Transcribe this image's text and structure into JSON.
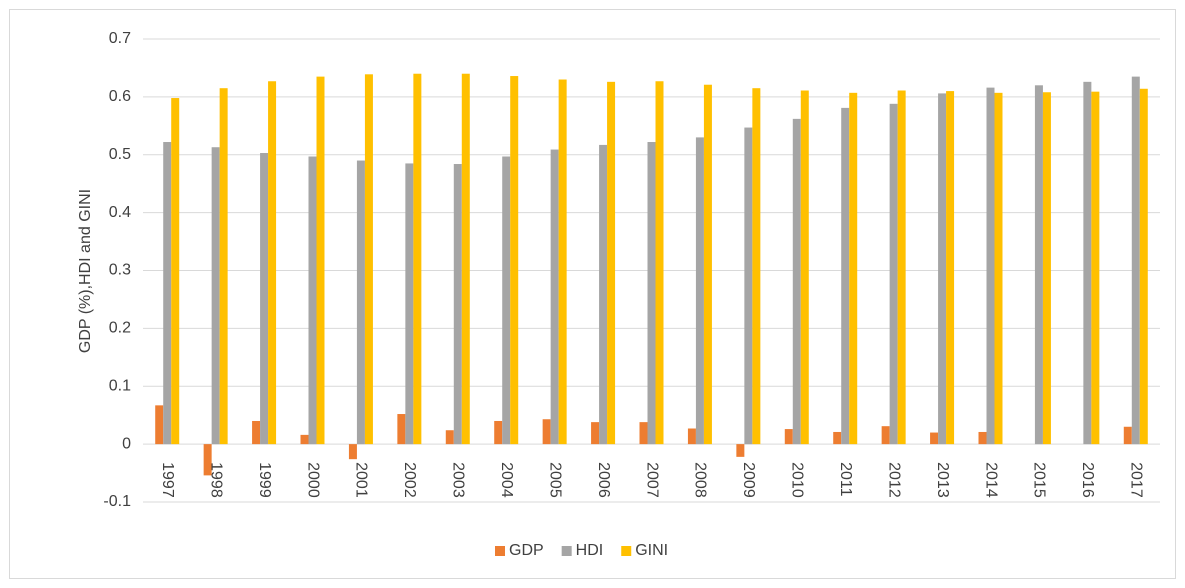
{
  "chart_data": {
    "type": "bar",
    "ylabel": "GDP (%),HDI and GINI",
    "categories": [
      "1997",
      "1998",
      "1999",
      "2000",
      "2001",
      "2002",
      "2003",
      "2004",
      "2005",
      "2006",
      "2007",
      "2008",
      "2009",
      "2010",
      "2011",
      "2012",
      "2013",
      "2014",
      "2015",
      "2016",
      "2017"
    ],
    "series": [
      {
        "name": "GDP",
        "color": "#ed7d31",
        "values": [
          0.067,
          -0.054,
          0.04,
          0.016,
          -0.026,
          0.052,
          0.024,
          0.04,
          0.043,
          0.038,
          0.038,
          0.027,
          -0.022,
          0.026,
          0.021,
          0.031,
          0.02,
          0.021,
          null,
          null,
          0.03
        ]
      },
      {
        "name": "HDI",
        "color": "#a5a5a5",
        "values": [
          0.522,
          0.513,
          0.503,
          0.497,
          0.49,
          0.485,
          0.484,
          0.497,
          0.509,
          0.517,
          0.522,
          0.53,
          0.547,
          0.562,
          0.581,
          0.588,
          0.606,
          0.616,
          0.62,
          0.626,
          0.635
        ]
      },
      {
        "name": "GINI",
        "color": "#ffc000",
        "values": [
          0.598,
          0.615,
          0.627,
          0.635,
          0.639,
          0.64,
          0.64,
          0.636,
          0.63,
          0.626,
          0.627,
          0.621,
          0.615,
          0.611,
          0.607,
          0.611,
          0.61,
          0.607,
          0.608,
          0.609,
          0.614
        ]
      }
    ],
    "ylim": [
      -0.1,
      0.7
    ],
    "yticks": [
      -0.1,
      0,
      0.1,
      0.2,
      0.3,
      0.4,
      0.5,
      0.6,
      0.7
    ],
    "grid": true,
    "legend": "bottom"
  }
}
